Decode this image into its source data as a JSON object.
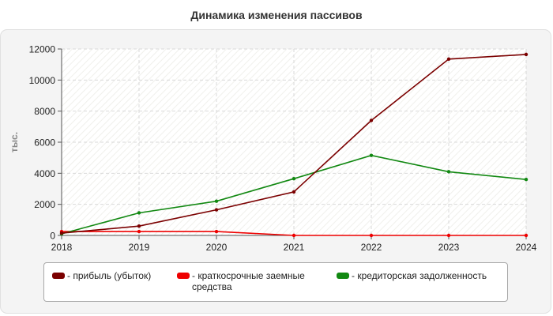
{
  "chart_data": {
    "type": "line",
    "title": "Динамика изменения пассивов",
    "ylabel": "тыс.",
    "xlabel": "",
    "x": [
      2018,
      2019,
      2020,
      2021,
      2022,
      2023,
      2024
    ],
    "ylim": [
      0,
      12000
    ],
    "yticks": [
      0,
      2000,
      4000,
      6000,
      8000,
      10000,
      12000
    ],
    "grid": true,
    "legend_position": "bottom",
    "series": [
      {
        "name": "- прибыль (убыток)",
        "color": "#7b0000",
        "values": [
          150,
          600,
          1650,
          2800,
          7400,
          11350,
          11650
        ]
      },
      {
        "name": "- краткосрочные заемные средства",
        "color": "#ee0000",
        "values": [
          250,
          250,
          250,
          0,
          0,
          0,
          0
        ]
      },
      {
        "name": "- кредиторская задолженность",
        "color": "#118811",
        "values": [
          100,
          1450,
          2200,
          3650,
          5150,
          4100,
          3600
        ]
      }
    ]
  }
}
